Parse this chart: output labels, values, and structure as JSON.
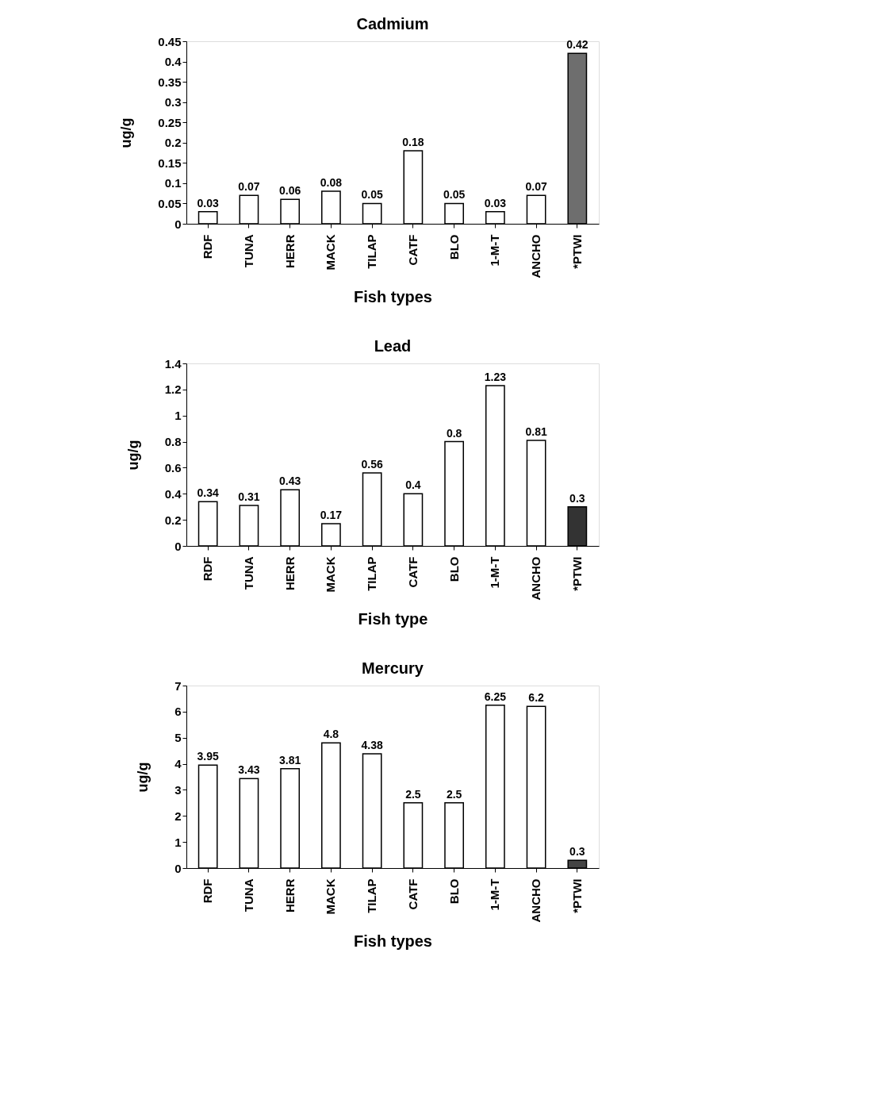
{
  "chart_data": [
    {
      "type": "bar",
      "title": "Cadmium",
      "xlabel": "Fish types",
      "ylabel": "ug/g",
      "categories": [
        "RDF",
        "TUNA",
        "HERR",
        "MACK",
        "TILAP",
        "CATF",
        "BLO",
        "1-M-T",
        "ANCHO",
        "*PTWI"
      ],
      "values": [
        0.03,
        0.07,
        0.06,
        0.08,
        0.05,
        0.18,
        0.05,
        0.03,
        0.07,
        0.42
      ],
      "colors": [
        "#ffffff",
        "#ffffff",
        "#ffffff",
        "#ffffff",
        "#ffffff",
        "#ffffff",
        "#ffffff",
        "#ffffff",
        "#ffffff",
        "#6e6e6e"
      ],
      "ylim": [
        0,
        0.45
      ],
      "yticks": [
        0,
        0.05,
        0.1,
        0.15,
        0.2,
        0.25,
        0.3,
        0.35,
        0.4,
        0.45
      ],
      "data_labels": true
    },
    {
      "type": "bar",
      "title": "Lead",
      "xlabel": "Fish type",
      "ylabel": "ug/g",
      "categories": [
        "RDF",
        "TUNA",
        "HERR",
        "MACK",
        "TILAP",
        "CATF",
        "BLO",
        "1-M-T",
        "ANCHO",
        "*PTWI"
      ],
      "values": [
        0.34,
        0.31,
        0.43,
        0.17,
        0.56,
        0.4,
        0.8,
        1.23,
        0.81,
        0.3
      ],
      "colors": [
        "#ffffff",
        "#ffffff",
        "#ffffff",
        "#ffffff",
        "#ffffff",
        "#ffffff",
        "#ffffff",
        "#ffffff",
        "#ffffff",
        "#333333"
      ],
      "ylim": [
        0,
        1.4
      ],
      "yticks": [
        0,
        0.2,
        0.4,
        0.6,
        0.8,
        1,
        1.2,
        1.4
      ],
      "data_labels": true
    },
    {
      "type": "bar",
      "title": "Mercury",
      "xlabel": "Fish types",
      "ylabel": "ug/g",
      "categories": [
        "RDF",
        "TUNA",
        "HERR",
        "MACK",
        "TILAP",
        "CATF",
        "BLO",
        "1-M-T",
        "ANCHO",
        "*PTWI"
      ],
      "values": [
        3.95,
        3.43,
        3.81,
        4.8,
        4.38,
        2.5,
        2.5,
        6.25,
        6.2,
        0.3
      ],
      "colors": [
        "#ffffff",
        "#ffffff",
        "#ffffff",
        "#ffffff",
        "#ffffff",
        "#ffffff",
        "#ffffff",
        "#ffffff",
        "#ffffff",
        "#444444"
      ],
      "ylim": [
        0,
        7
      ],
      "yticks": [
        0,
        1,
        2,
        3,
        4,
        5,
        6,
        7
      ],
      "data_labels": true
    }
  ]
}
